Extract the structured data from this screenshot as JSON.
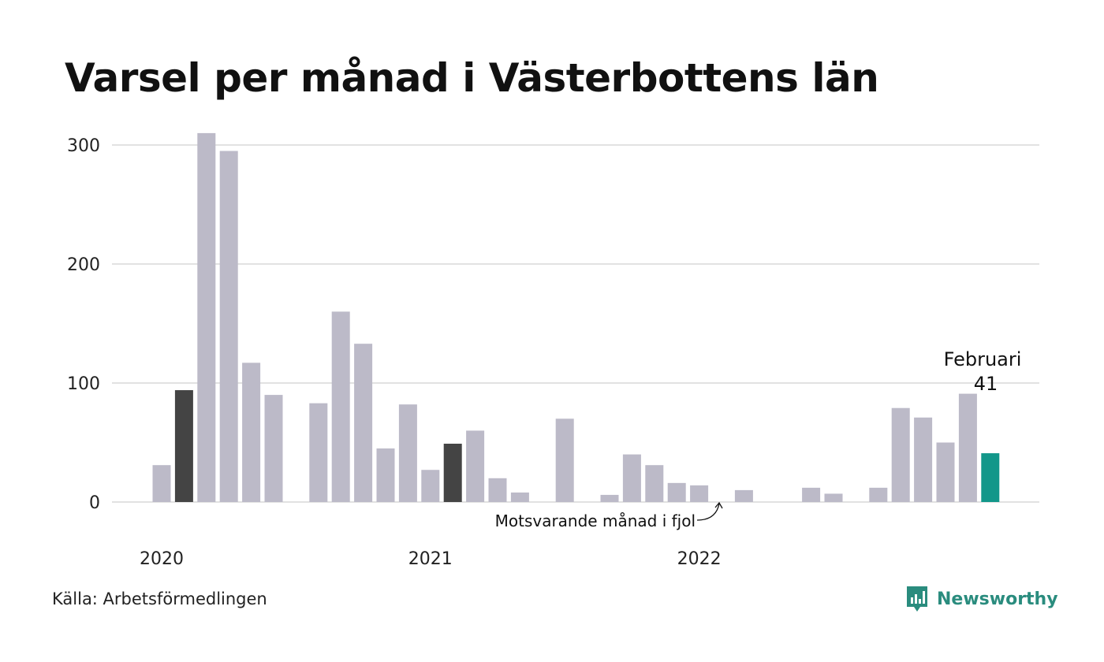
{
  "chart_data": {
    "type": "bar",
    "title": "Varsel per månad i Västerbottens län",
    "source": "Källa: Arbetsförmedlingen",
    "brand": "Newsworthy",
    "ylim": [
      0,
      310
    ],
    "yticks": [
      0,
      100,
      200,
      300
    ],
    "grid": true,
    "x_year_labels": [
      "2020",
      "2021",
      "2022"
    ],
    "categories": [
      "2020-01",
      "2020-02",
      "2020-03",
      "2020-04",
      "2020-05",
      "2020-06",
      "2020-07",
      "2020-08",
      "2020-09",
      "2020-10",
      "2020-11",
      "2020-12",
      "2021-01",
      "2021-02",
      "2021-03",
      "2021-04",
      "2021-05",
      "2021-06",
      "2021-07",
      "2021-08",
      "2021-09",
      "2021-10",
      "2021-11",
      "2021-12",
      "2022-01",
      "2022-02",
      "2022-03",
      "2022-04",
      "2022-05",
      "2022-06",
      "2022-07",
      "2022-08",
      "2022-09",
      "2022-10",
      "2022-11",
      "2022-12",
      "2023-01",
      "2023-02"
    ],
    "values": [
      31,
      94,
      310,
      295,
      117,
      90,
      0,
      83,
      160,
      133,
      45,
      82,
      27,
      49,
      60,
      20,
      8,
      0,
      70,
      0,
      6,
      40,
      31,
      16,
      14,
      0,
      10,
      0,
      0,
      12,
      7,
      0,
      12,
      79,
      71,
      50,
      91,
      41
    ],
    "highlight": {
      "same_month_last_year": [
        "2020-02",
        "2021-02"
      ],
      "current": "2023-02"
    },
    "colors": {
      "default": "#bcbac8",
      "previous_year": "#444444",
      "current": "#12978a",
      "grid": "#e2e2e2",
      "brand": "#2a8c7e"
    },
    "annotation": "Motsvarande månad i fjol",
    "callout": {
      "label": "Februari",
      "value": "41"
    }
  }
}
